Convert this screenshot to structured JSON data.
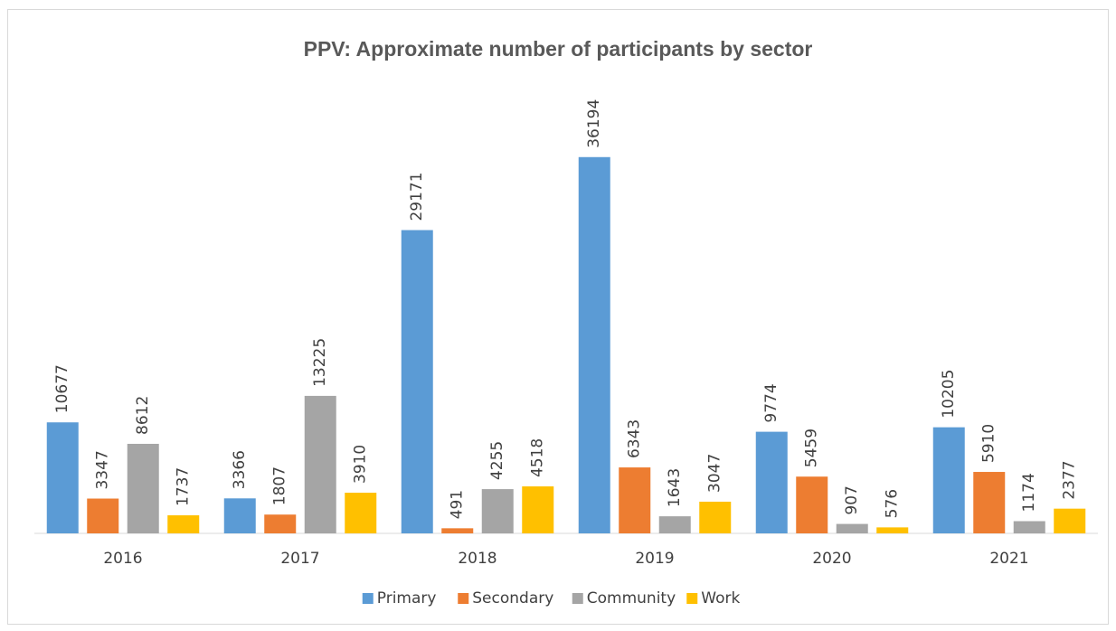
{
  "chart_data": {
    "type": "bar",
    "title": "PPV: Approximate number of participants by sector",
    "categories": [
      "2016",
      "2017",
      "2018",
      "2019",
      "2020",
      "2021"
    ],
    "series": [
      {
        "name": "Primary",
        "color": "#5b9bd5",
        "values": [
          10677,
          3366,
          29171,
          36194,
          9774,
          10205
        ]
      },
      {
        "name": "Secondary",
        "color": "#ed7d31",
        "values": [
          3347,
          1807,
          491,
          6343,
          5459,
          5910
        ]
      },
      {
        "name": "Community",
        "color": "#a5a5a5",
        "values": [
          8612,
          13225,
          4255,
          1643,
          907,
          1174
        ]
      },
      {
        "name": "Work",
        "color": "#ffc000",
        "values": [
          1737,
          3910,
          4518,
          3047,
          576,
          2377
        ]
      }
    ],
    "ylim": [
      0,
      40000
    ],
    "legend": "bottom"
  }
}
